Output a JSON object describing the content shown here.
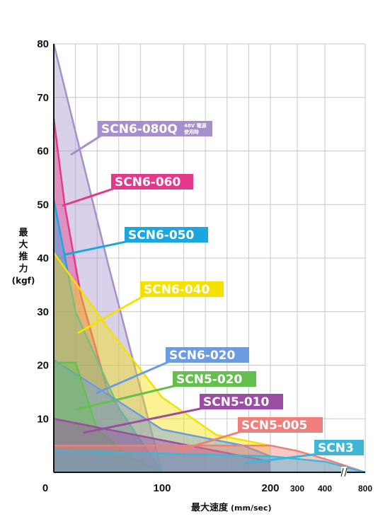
{
  "chart_data": {
    "type": "area",
    "xlabel": "最大速度",
    "xlabel_unit": "(mm/sec)",
    "ylabel_lines": [
      "最",
      "大",
      "推",
      "力",
      "(kgf)"
    ],
    "x_ticks": [
      "0",
      "100",
      "200",
      "300",
      "400",
      "800"
    ],
    "y_ticks": [
      "10",
      "20",
      "30",
      "40",
      "50",
      "60",
      "70",
      "80"
    ],
    "ylim": [
      0,
      80
    ],
    "grid": true,
    "note_48v": "48V 電源",
    "note_use": "使用時",
    "series": [
      {
        "name": "SCN6-080Q",
        "color": "#a58fcc",
        "x": [
          0,
          50,
          100
        ],
        "y": [
          80,
          39,
          0
        ]
      },
      {
        "name": "SCN6-060",
        "color": "#e5378c",
        "x": [
          0,
          10,
          25,
          50,
          100
        ],
        "y": [
          66,
          50,
          33,
          15,
          0
        ]
      },
      {
        "name": "SCN6-050",
        "color": "#1aa7e0",
        "x": [
          0,
          20,
          60,
          100
        ],
        "y": [
          51,
          30,
          12,
          0
        ]
      },
      {
        "name": "SCN6-040",
        "color": "#f5e100",
        "x": [
          0,
          50,
          100,
          150,
          200
        ],
        "y": [
          41,
          27,
          14,
          7,
          5
        ]
      },
      {
        "name": "SCN6-020",
        "color": "#6b9be0",
        "x": [
          0,
          100,
          175,
          200
        ],
        "y": [
          21,
          8,
          5,
          3
        ]
      },
      {
        "name": "SCN5-020",
        "color": "#64c04e",
        "x": [
          0,
          20,
          40,
          70,
          100
        ],
        "y": [
          20.5,
          20.5,
          8,
          3,
          0
        ]
      },
      {
        "name": "SCN5-010",
        "color": "#9b4ca3",
        "x": [
          0,
          100,
          200
        ],
        "y": [
          10,
          6,
          2
        ]
      },
      {
        "name": "SCN5-005",
        "color": "#ee7f7b",
        "x": [
          0,
          200,
          300,
          400,
          800
        ],
        "y": [
          5,
          5,
          4,
          2.5,
          0
        ]
      },
      {
        "name": "SCN3",
        "color": "#3fb6d8",
        "x": [
          0,
          200,
          300,
          400,
          800
        ],
        "y": [
          4,
          3,
          2.5,
          2,
          0
        ]
      }
    ]
  }
}
